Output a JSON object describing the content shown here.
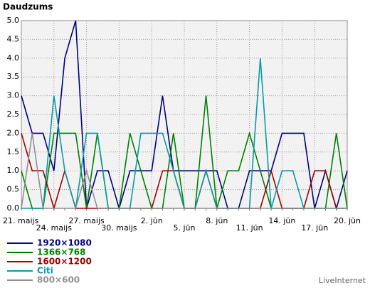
{
  "chart_data": {
    "type": "line",
    "title": "Daudzums",
    "categories": [
      "21. maijs",
      null,
      null,
      "24. maijs",
      null,
      null,
      "27. maijs",
      null,
      null,
      "30. maijs",
      null,
      null,
      "2. jūn",
      null,
      null,
      "5. jūn",
      null,
      null,
      "8. jūn",
      null,
      null,
      "11. jūn",
      null,
      null,
      "14. jūn",
      null,
      null,
      "17. jūn",
      null,
      null,
      "20. jūn"
    ],
    "series": [
      {
        "name": "1920×1080",
        "color": "#000080",
        "values": [
          3,
          2,
          2,
          1,
          4,
          5,
          0,
          1,
          1,
          0,
          1,
          1,
          1,
          3,
          1,
          1,
          1,
          1,
          1,
          0,
          0,
          1,
          1,
          1,
          2,
          2,
          2,
          0,
          1,
          0,
          1
        ]
      },
      {
        "name": "1366×768",
        "color": "#008000",
        "values": [
          1,
          0,
          0,
          2,
          2,
          2,
          0,
          2,
          0,
          0,
          2,
          1,
          0,
          0,
          2,
          0,
          0,
          3,
          0,
          1,
          1,
          2,
          1,
          0,
          0,
          0,
          0,
          0,
          0,
          2,
          0
        ]
      },
      {
        "name": "1600×1200",
        "color": "#a00000",
        "values": [
          2,
          1,
          1,
          0,
          1,
          0,
          0,
          0,
          0,
          0,
          0,
          0,
          0,
          1,
          1,
          0,
          0,
          1,
          0,
          0,
          0,
          0,
          0,
          1,
          0,
          0,
          0,
          1,
          1,
          0,
          0
        ]
      },
      {
        "name": "Citi",
        "color": "#0a9aa4",
        "values": [
          0,
          0,
          0,
          3,
          1,
          0,
          2,
          2,
          0,
          0,
          0,
          2,
          2,
          2,
          1,
          0,
          0,
          1,
          0,
          0,
          0,
          0,
          4,
          0,
          1,
          1,
          0,
          0,
          0,
          0,
          0
        ]
      },
      {
        "name": "800×600",
        "color": "#909090",
        "values": [
          0,
          2,
          0,
          0,
          0,
          0,
          1,
          0,
          0,
          0,
          0,
          0,
          0,
          0,
          0,
          0,
          0,
          0,
          0,
          0,
          0,
          0,
          0,
          0,
          0,
          0,
          0,
          0,
          0,
          0,
          0
        ]
      }
    ],
    "ylim": [
      0,
      5
    ],
    "yticks": [
      {
        "value": 0,
        "label": "0.0"
      },
      {
        "value": 0.5,
        "label": "0.5"
      },
      {
        "value": 1,
        "label": "1.0"
      },
      {
        "value": 1.5,
        "label": "1.5"
      },
      {
        "value": 2,
        "label": "2.0"
      },
      {
        "value": 2.5,
        "label": "2.5"
      },
      {
        "value": 3,
        "label": "3.0"
      },
      {
        "value": 3.5,
        "label": "3.5"
      },
      {
        "value": 4,
        "label": "4.0"
      },
      {
        "value": 4.5,
        "label": "4.5"
      },
      {
        "value": 5,
        "label": "5.0"
      }
    ],
    "grid": true,
    "footer": "LiveInternet"
  }
}
